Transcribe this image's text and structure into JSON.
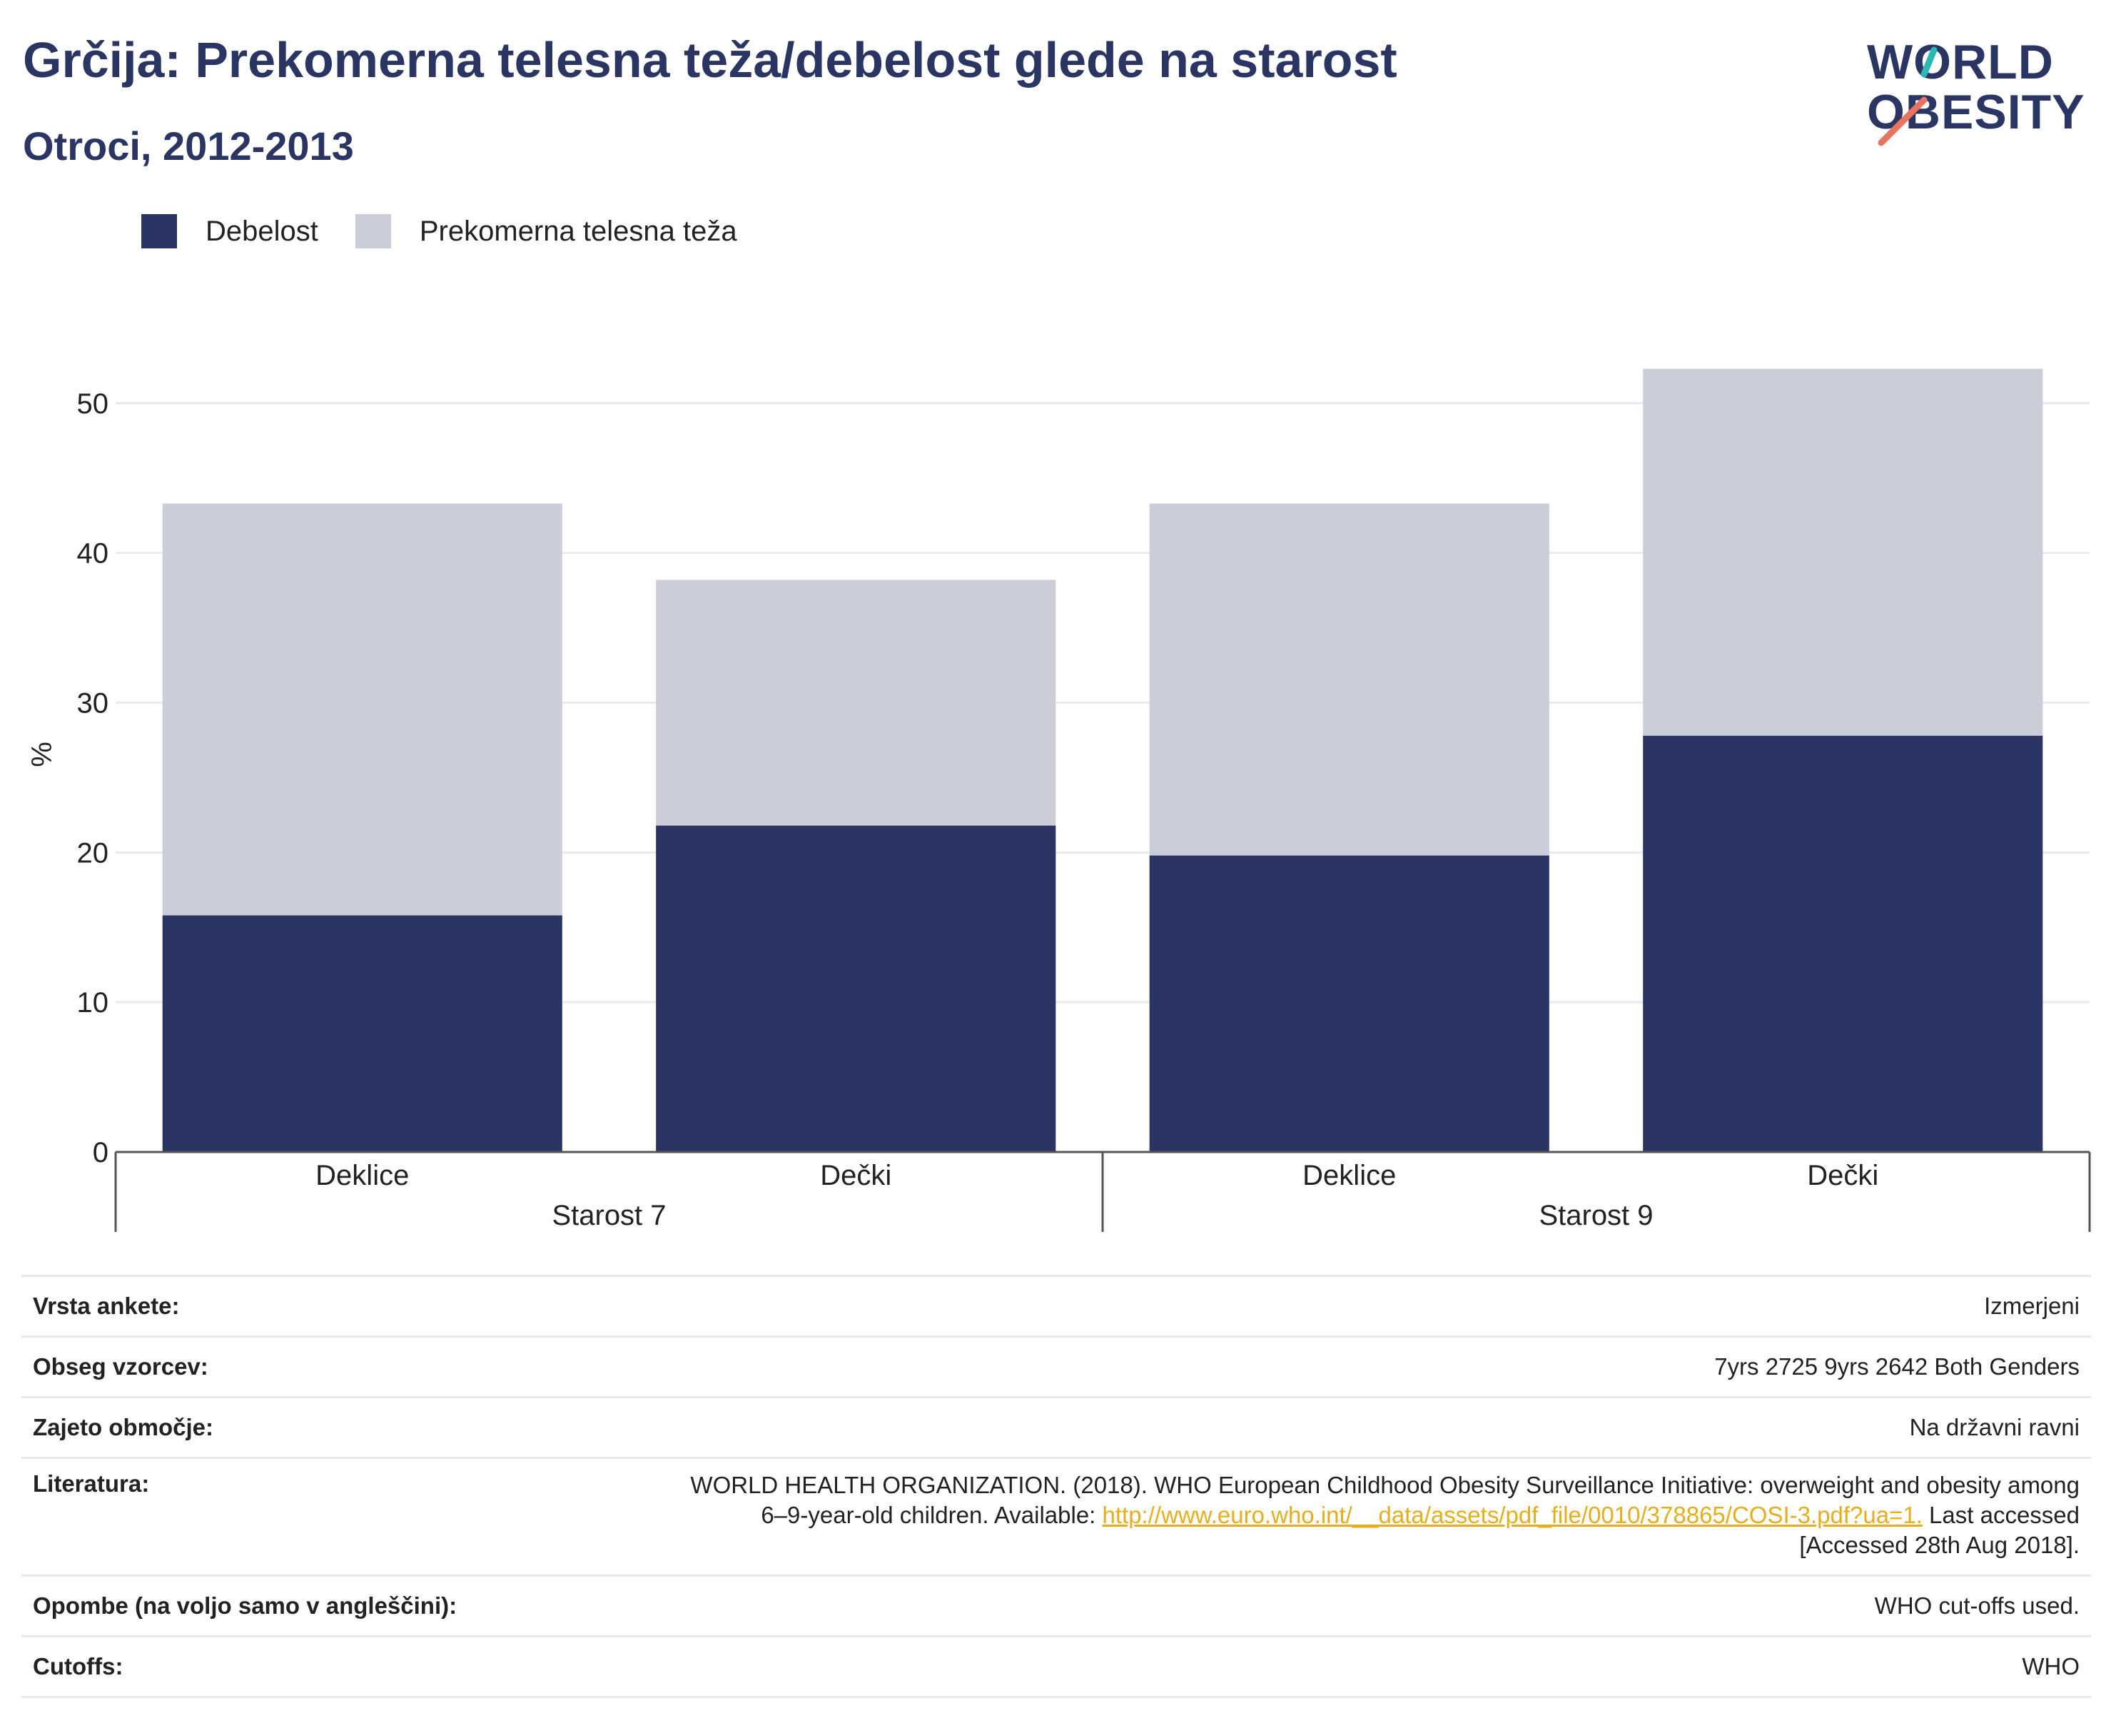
{
  "header": {
    "title": "Grčija: Prekomerna telesna teža/debelost glede na starost",
    "subtitle": "Otroci, 2012-2013"
  },
  "logo": {
    "line1": "WORLD",
    "line2": "OBESITY",
    "accent_teal": "#2bb7b3",
    "accent_coral": "#e8735f"
  },
  "colors": {
    "obesity": "#2a3564",
    "overweight": "#cbcdd9",
    "title": "#2a3564",
    "link": "#e8ad1b"
  },
  "chart_data": {
    "type": "bar",
    "stacked": true,
    "ylabel": "%",
    "ylim": [
      0,
      55
    ],
    "yticks": [
      0,
      10,
      20,
      30,
      40,
      50
    ],
    "grid": true,
    "legend_position": "top-left",
    "categories": [
      "Deklice",
      "Dečki",
      "Deklice",
      "Dečki"
    ],
    "groups": [
      {
        "label": "Starost 7",
        "categories": [
          0,
          1
        ]
      },
      {
        "label": "Starost 9",
        "categories": [
          2,
          3
        ]
      }
    ],
    "series": [
      {
        "name": "Debelost",
        "values": [
          15.8,
          21.8,
          19.8,
          27.8
        ]
      },
      {
        "name": "Prekomerna telesna teža",
        "values": [
          27.5,
          16.4,
          23.5,
          24.5
        ]
      }
    ]
  },
  "info": {
    "survey_type_label": "Vrsta ankete:",
    "survey_type_value": "Izmerjeni",
    "sample_label": "Obseg vzorcev:",
    "sample_value": "7yrs 2725 9yrs 2642 Both Genders",
    "area_label": "Zajeto območje:",
    "area_value": "Na državni ravni",
    "literature_label": "Literatura:",
    "literature_text1": "WORLD HEALTH ORGANIZATION. (2018). WHO European Childhood Obesity Surveillance Initiative: overweight and obesity among",
    "literature_text2": "6–9-year-old children. Available: ",
    "literature_link": "http://www.euro.who.int/__data/assets/pdf_file/0010/378865/COSI-3.pdf?ua=1.",
    "literature_text3": " Last accessed",
    "literature_text4": "[Accessed 28th Aug 2018].",
    "notes_label": "Opombe (na voljo samo v angleščini):",
    "notes_value": "WHO cut-offs used.",
    "cutoffs_label": "Cutoffs:",
    "cutoffs_value": "WHO"
  }
}
